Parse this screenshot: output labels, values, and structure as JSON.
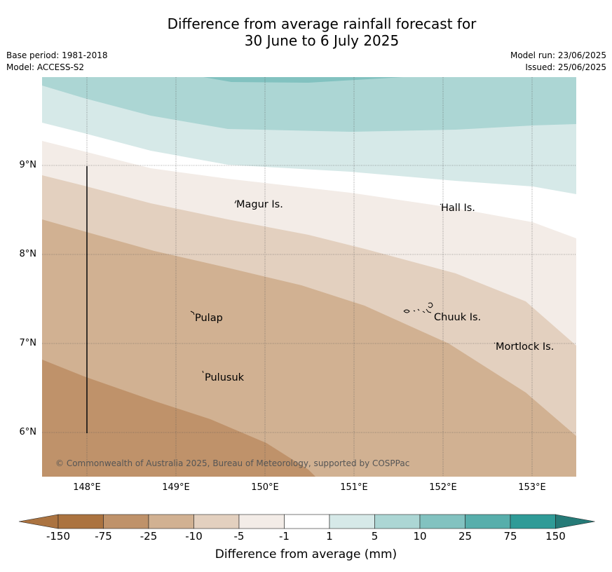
{
  "title_line1": "Difference from average rainfall forecast for",
  "title_line2": "30 June to 6 July 2025",
  "base_period": "Base period: 1981-2018",
  "model": "Model: ACCESS-S2",
  "model_run": "Model run: 23/06/2025",
  "issued": "Issued: 25/06/2025",
  "map": {
    "lat_labels": [
      "9°N",
      "8°N",
      "7°N",
      "6°N"
    ],
    "lon_labels": [
      "148°E",
      "149°E",
      "150°E",
      "151°E",
      "152°E",
      "153°E"
    ],
    "places": [
      "Magur Is.",
      "Hall Is.",
      "Pulap",
      "Chuuk Is.",
      "Mortlock Is.",
      "Pulusuk"
    ],
    "copyright": "© Commonwealth of Australia 2025, Bureau of Meteorology, supported by COSPPac"
  },
  "colorbar": {
    "ticks": [
      "-150",
      "-75",
      "-25",
      "-10",
      "-5",
      "-1",
      "1",
      "5",
      "10",
      "25",
      "75",
      "150"
    ],
    "colors": [
      "#ab7340",
      "#bf926a",
      "#d1b192",
      "#e3d0bf",
      "#f3ece7",
      "#ffffff",
      "#d6e9e8",
      "#acd6d4",
      "#82c2c0",
      "#57aeab",
      "#2f9b97",
      "#257a77"
    ],
    "label": "Difference from average (mm)"
  }
}
